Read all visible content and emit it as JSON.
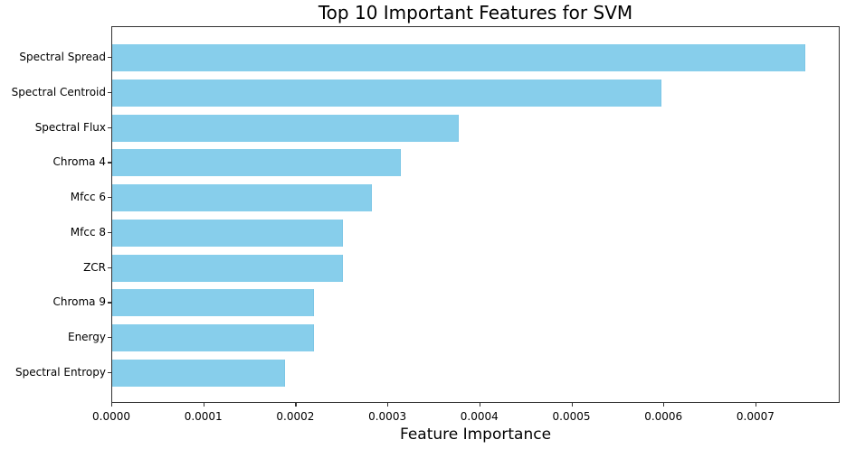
{
  "chart_data": {
    "type": "bar",
    "orientation": "horizontal",
    "title": "Top 10 Important Features for SVM",
    "xlabel": "Feature Importance",
    "ylabel": "",
    "categories": [
      "Spectral Spread",
      "Spectral Centroid",
      "Spectral Flux",
      "Chroma 4",
      "Mfcc 6",
      "Mfcc 8",
      "ZCR",
      "Chroma 9",
      "Energy",
      "Spectral Entropy"
    ],
    "values": [
      0.000753,
      0.000597,
      0.000377,
      0.000314,
      0.000282,
      0.000251,
      0.000251,
      0.000219,
      0.000219,
      0.000188
    ],
    "xlim": [
      0,
      0.000792
    ],
    "xticks": [
      "0.0000",
      "0.0001",
      "0.0002",
      "0.0003",
      "0.0004",
      "0.0005",
      "0.0006",
      "0.0007"
    ],
    "xtick_values": [
      0,
      0.0001,
      0.0002,
      0.0003,
      0.0004,
      0.0005,
      0.0006,
      0.0007
    ],
    "grid": false,
    "legend": null,
    "bar_color": "#87ceeb"
  }
}
